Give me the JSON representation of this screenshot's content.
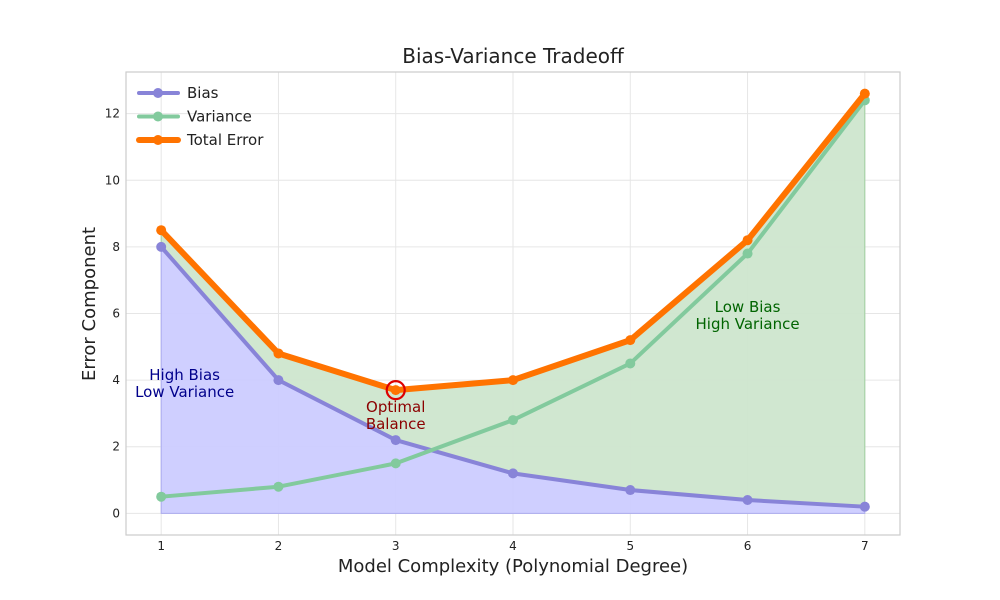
{
  "chart_data": {
    "type": "line",
    "title": "Bias-Variance Tradeoff",
    "xlabel": "Model Complexity (Polynomial Degree)",
    "ylabel": "Error Component",
    "x": [
      1,
      2,
      3,
      4,
      5,
      6,
      7
    ],
    "xlim": [
      0.7,
      7.3
    ],
    "ylim": [
      -0.65,
      13.25
    ],
    "xticks": [
      1,
      2,
      3,
      4,
      5,
      6,
      7
    ],
    "yticks": [
      0,
      2,
      4,
      6,
      8,
      10,
      12
    ],
    "grid": true,
    "legend_position": "top-left",
    "series": [
      {
        "name": "Bias",
        "values": [
          8.0,
          4.0,
          2.2,
          1.2,
          0.7,
          0.4,
          0.2
        ],
        "color": "#8884d8",
        "fill": "#ccccff"
      },
      {
        "name": "Variance",
        "values": [
          0.5,
          0.8,
          1.5,
          2.8,
          4.5,
          7.8,
          12.4
        ],
        "color": "#82ca9d",
        "fill": "#cde6cd"
      },
      {
        "name": "Total Error",
        "values": [
          8.5,
          4.8,
          3.7,
          4.0,
          5.2,
          8.2,
          12.6
        ],
        "color": "#ff7300"
      }
    ],
    "optimal_marker": {
      "x": 3,
      "y": 3.7,
      "color": "#dd0000"
    },
    "annotations": [
      {
        "key": "high-bias",
        "lines": [
          "High Bias",
          "Low Variance"
        ],
        "x": 1.2,
        "y": 4.0,
        "color": "#00008b"
      },
      {
        "key": "optimal",
        "lines": [
          "Optimal",
          "Balance"
        ],
        "x": 3.0,
        "y": 3.05,
        "color": "#8b0000"
      },
      {
        "key": "low-bias",
        "lines": [
          "Low Bias",
          "High Variance"
        ],
        "x": 6.0,
        "y": 6.05,
        "color": "#006400"
      }
    ]
  }
}
